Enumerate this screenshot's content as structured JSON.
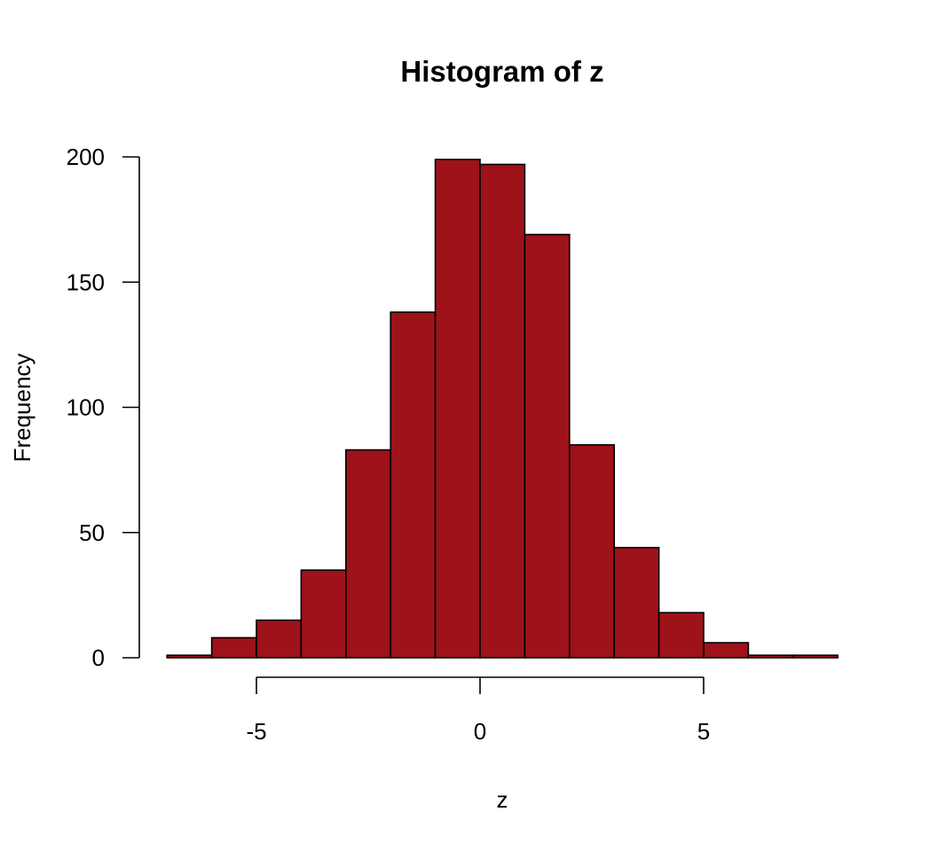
{
  "chart_data": {
    "type": "bar",
    "title": "Histogram of z",
    "xlabel": "z",
    "ylabel": "Frequency",
    "bins": [
      {
        "x0": -7,
        "x1": -6,
        "count": 1
      },
      {
        "x0": -6,
        "x1": -5,
        "count": 8
      },
      {
        "x0": -5,
        "x1": -4,
        "count": 15
      },
      {
        "x0": -4,
        "x1": -3,
        "count": 35
      },
      {
        "x0": -3,
        "x1": -2,
        "count": 83
      },
      {
        "x0": -2,
        "x1": -1,
        "count": 138
      },
      {
        "x0": -1,
        "x1": 0,
        "count": 199
      },
      {
        "x0": 0,
        "x1": 1,
        "count": 197
      },
      {
        "x0": 1,
        "x1": 2,
        "count": 169
      },
      {
        "x0": 2,
        "x1": 3,
        "count": 85
      },
      {
        "x0": 3,
        "x1": 4,
        "count": 44
      },
      {
        "x0": 4,
        "x1": 5,
        "count": 18
      },
      {
        "x0": 5,
        "x1": 6,
        "count": 6
      },
      {
        "x0": 6,
        "x1": 7,
        "count": 1
      },
      {
        "x0": 7,
        "x1": 8,
        "count": 1
      }
    ],
    "xticks": [
      -5,
      0,
      5
    ],
    "xtick_labels": [
      "-5",
      "0",
      "5"
    ],
    "yticks": [
      0,
      50,
      100,
      150,
      200
    ],
    "ytick_labels": [
      "0",
      "50",
      "100",
      "150",
      "200"
    ],
    "bar_color": "#9e1219",
    "grid": false
  }
}
